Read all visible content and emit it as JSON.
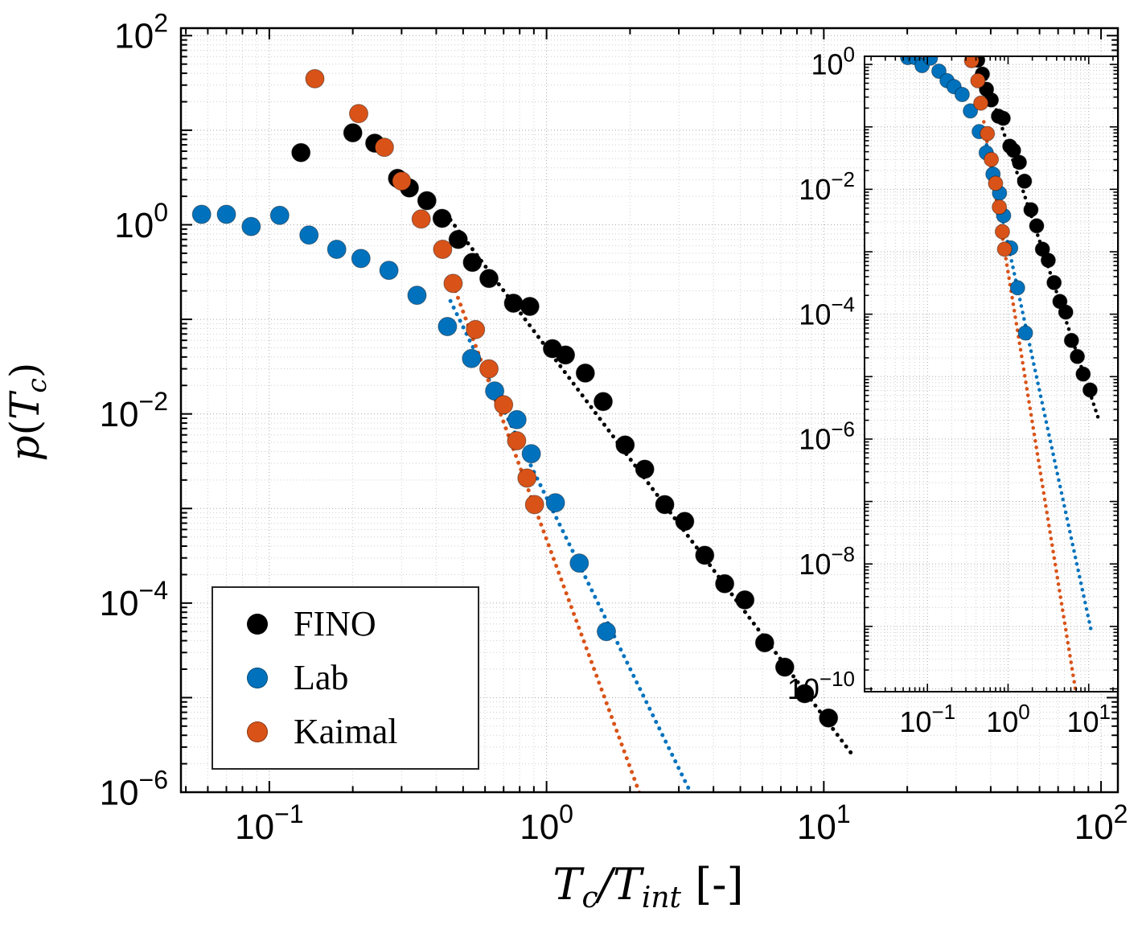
{
  "figure": {
    "background": "#ffffff",
    "axes_color": "#000000",
    "grid_major_color": "#a8a8a8",
    "grid_minor_color": "#cfcfcf"
  },
  "legend": {
    "items": [
      {
        "label": "FINO",
        "color": "#000000"
      },
      {
        "label": "Lab",
        "color": "#0072BD"
      },
      {
        "label": "Kaimal",
        "color": "#D95319"
      }
    ]
  },
  "chart_data": {
    "type": "scatter",
    "title": "",
    "xscale": "log",
    "yscale": "log",
    "xlabel": "T_c/T_int [-]",
    "ylabel": "p(T_c)",
    "grid": "on",
    "legend_position": "southwest",
    "xlabel_parts": [
      {
        "t": "T",
        "s": "i"
      },
      {
        "t": "c",
        "s": "sub"
      },
      {
        "t": "/",
        "s": "i"
      },
      {
        "t": "T",
        "s": "i"
      },
      {
        "t": "int",
        "s": "sub"
      },
      {
        "t": "  [-]",
        "s": "r"
      }
    ],
    "ylabel_parts": [
      {
        "t": "p",
        "s": "i"
      },
      {
        "t": "(",
        "s": "r"
      },
      {
        "t": "T",
        "s": "i"
      },
      {
        "t": "c",
        "s": "sub"
      },
      {
        "t": ")",
        "s": "r"
      }
    ],
    "series": [
      {
        "name": "FINO",
        "color": "#000000",
        "x": [
          0.13,
          0.2,
          0.24,
          0.29,
          0.32,
          0.37,
          0.42,
          0.48,
          0.54,
          0.62,
          0.76,
          0.87,
          1.05,
          1.17,
          1.38,
          1.6,
          1.92,
          2.26,
          2.67,
          3.15,
          3.72,
          4.39,
          5.19,
          6.12,
          7.23,
          8.53,
          10.4
        ],
        "y": [
          5.8,
          9.4,
          7.3,
          3.1,
          2.45,
          1.8,
          1.17,
          0.7,
          0.4,
          0.27,
          0.148,
          0.137,
          0.049,
          0.042,
          0.027,
          0.0135,
          0.0047,
          0.0026,
          0.0011,
          0.00073,
          0.00032,
          0.00016,
          0.000108,
          3.8e-05,
          2.1e-05,
          1.1e-05,
          6.1e-06
        ],
        "fit": {
          "coef": 0.05,
          "slope": -3.9,
          "style": "dotted"
        }
      },
      {
        "name": "Lab",
        "color": "#0072BD",
        "x": [
          0.057,
          0.07,
          0.086,
          0.109,
          0.139,
          0.175,
          0.214,
          0.27,
          0.341,
          0.439,
          0.536,
          0.65,
          0.782,
          0.881,
          1.076,
          1.312,
          1.644
        ],
        "y": [
          1.29,
          1.29,
          0.96,
          1.26,
          0.78,
          0.55,
          0.44,
          0.33,
          0.18,
          0.084,
          0.0385,
          0.0175,
          0.0087,
          0.0038,
          0.00115,
          0.000265,
          5e-05
        ],
        "fit": {
          "coef": 0.0013,
          "slope": -6.0,
          "style": "dotted"
        }
      },
      {
        "name": "Kaimal",
        "color": "#D95319",
        "x": [
          0.146,
          0.21,
          0.26,
          0.3,
          0.353,
          0.422,
          0.46,
          0.554,
          0.62,
          0.7,
          0.78,
          0.85,
          0.905
        ],
        "y": [
          35,
          15,
          6.6,
          2.9,
          1.15,
          0.55,
          0.24,
          0.078,
          0.03,
          0.0125,
          0.0052,
          0.0021,
          0.0011
        ],
        "fit": {
          "coef": 0.00047,
          "slope": -8.0,
          "style": "dotted"
        }
      }
    ],
    "main_axes": {
      "x": [
        0.048,
        115
      ],
      "y": [
        1e-06,
        120
      ],
      "xtick_exp": [
        -1,
        0,
        1,
        2
      ],
      "ytick_exp": [
        2,
        0,
        -2,
        -4,
        -6
      ],
      "fit_ranges": {
        "FINO": [
          0.45,
          12.7
        ],
        "Lab": [
          0.45,
          3.35
        ],
        "Kaimal": [
          0.45,
          2.2
        ]
      }
    },
    "inset_axes": {
      "x": [
        0.0166,
        23
      ],
      "y": [
        9e-11,
        1.35
      ],
      "xtick_exp": [
        -1,
        0,
        1
      ],
      "ytick_exp": [
        0,
        -2,
        -4,
        -6,
        -8,
        -10
      ],
      "fit_ranges": {
        "FINO": [
          0.5,
          13.5
        ],
        "Lab": [
          0.5,
          10.8
        ],
        "Kaimal": [
          0.5,
          6.9
        ]
      }
    }
  }
}
